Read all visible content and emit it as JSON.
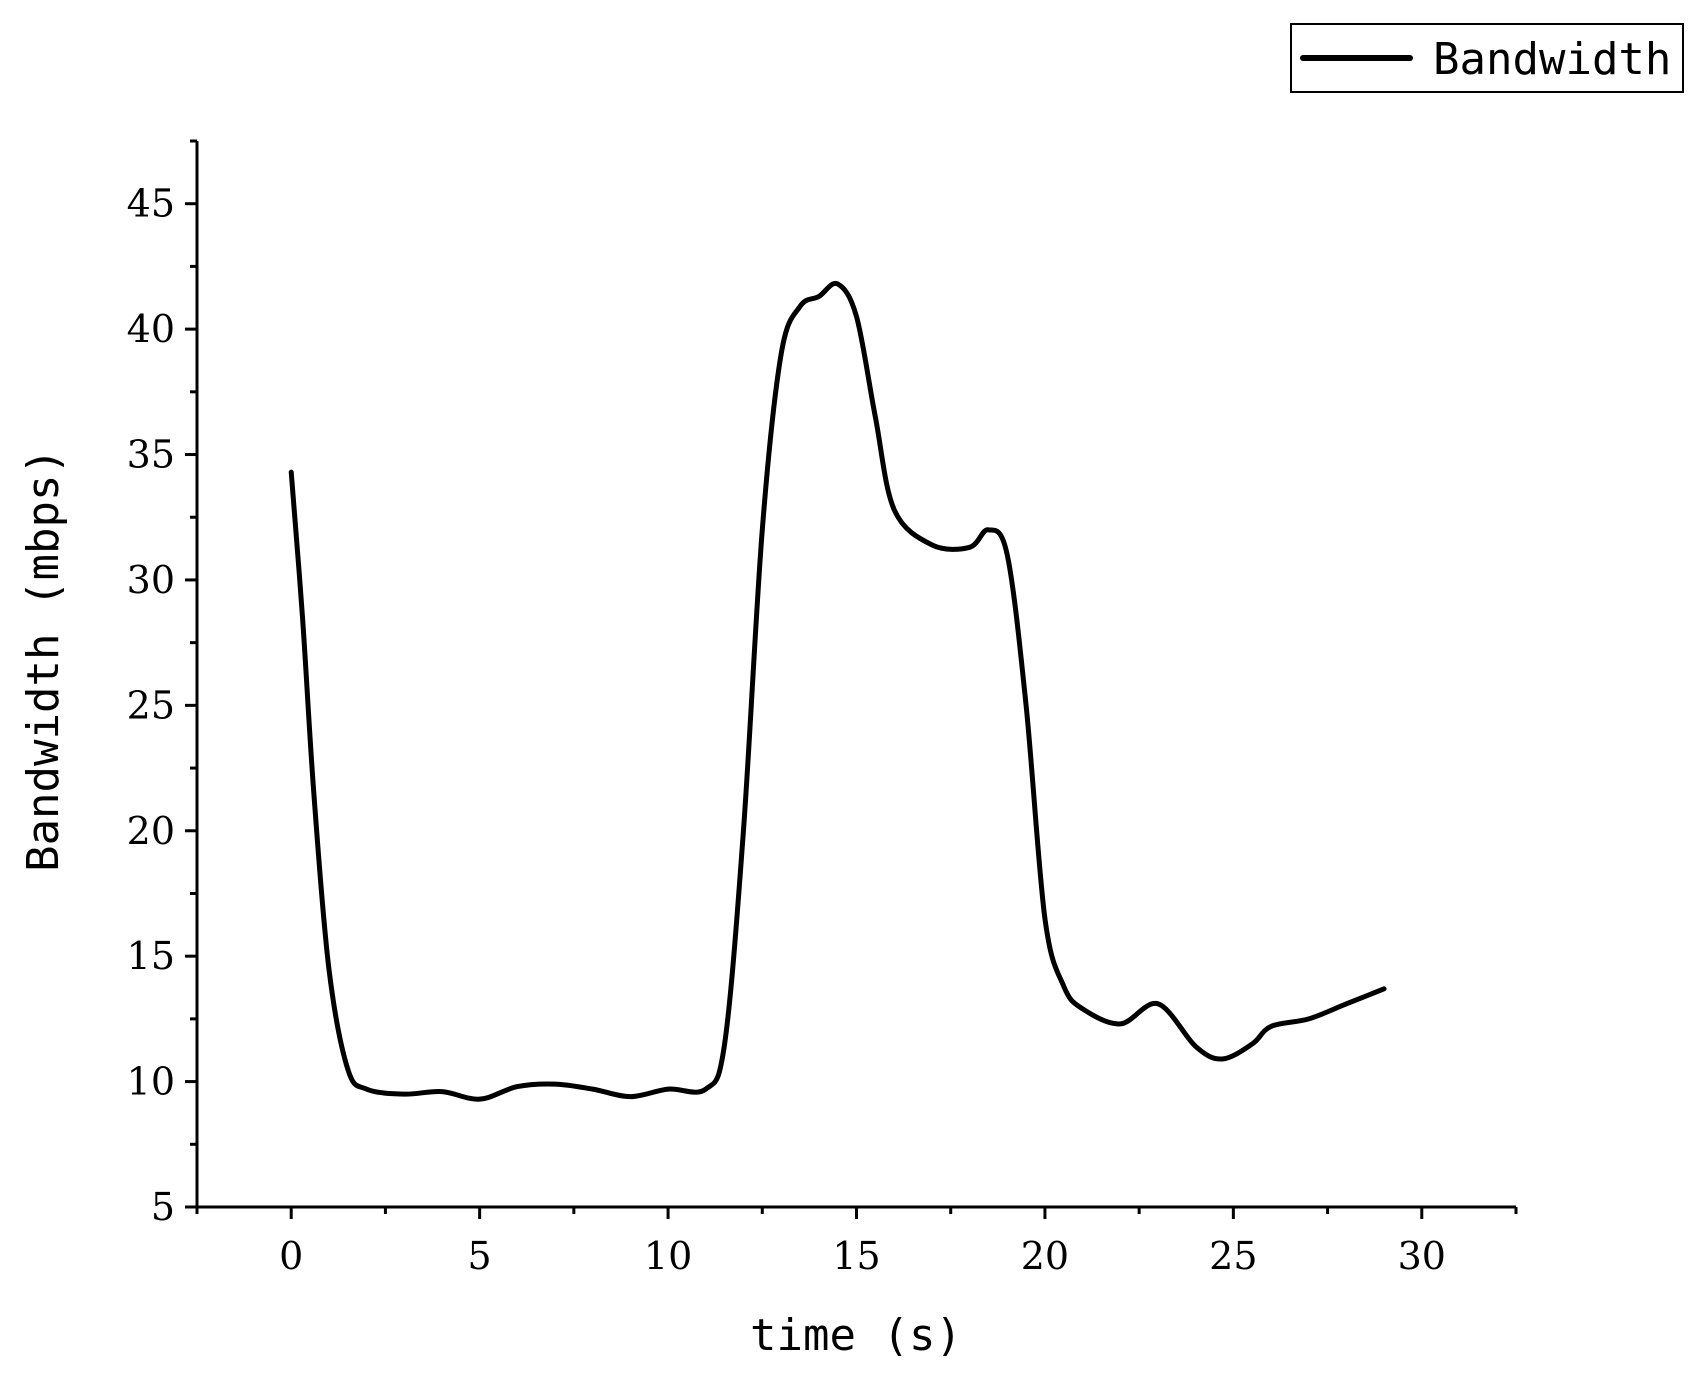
{
  "chart_data": {
    "type": "line",
    "title": "",
    "xlabel": "time (s)",
    "ylabel": "Bandwidth (mbps)",
    "xlim": [
      -2.5,
      32.5
    ],
    "ylim": [
      5,
      47.5
    ],
    "xticks": [
      0,
      5,
      10,
      15,
      20,
      25,
      30
    ],
    "yticks": [
      5,
      10,
      15,
      20,
      25,
      30,
      35,
      40,
      45
    ],
    "grid": false,
    "legend": {
      "position": "top-right"
    },
    "series": [
      {
        "name": "Bandwidth",
        "color": "#000000",
        "x": [
          0,
          0.3,
          0.6,
          1.0,
          1.5,
          2.0,
          3.0,
          4.0,
          5.0,
          6.0,
          7.0,
          8.0,
          9.0,
          10.0,
          11.0,
          11.5,
          12.0,
          12.5,
          13.0,
          13.5,
          14.0,
          14.5,
          15.0,
          15.5,
          16.0,
          17.0,
          18.0,
          18.5,
          19.0,
          19.5,
          20.0,
          20.5,
          21.0,
          22.0,
          23.0,
          24.0,
          24.7,
          25.5,
          26.0,
          27.0,
          28.0,
          29.0
        ],
        "y": [
          34.3,
          28.5,
          21.5,
          14.5,
          10.5,
          9.7,
          9.5,
          9.6,
          9.3,
          9.8,
          9.9,
          9.7,
          9.4,
          9.7,
          9.7,
          11.5,
          20.0,
          32.0,
          39.0,
          40.9,
          41.3,
          41.8,
          40.5,
          36.5,
          32.8,
          31.4,
          31.3,
          32.0,
          31.0,
          25.0,
          16.5,
          13.8,
          12.9,
          12.3,
          13.1,
          11.4,
          10.9,
          11.5,
          12.2,
          12.5,
          13.1,
          13.7
        ]
      }
    ]
  }
}
